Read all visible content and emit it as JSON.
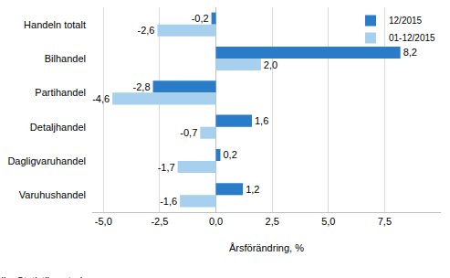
{
  "chart_data": {
    "type": "bar",
    "orientation": "horizontal",
    "categories": [
      "Handeln totalt",
      "Bilhandel",
      "Partihandel",
      "Detaljhandel",
      "Dagligvaruhandel",
      "Varuhushandel"
    ],
    "series": [
      {
        "name": "12/2015",
        "color": "#2a7cc8",
        "values": [
          -0.2,
          8.2,
          -2.8,
          1.6,
          0.2,
          1.2
        ],
        "value_labels": [
          "-0,2",
          "8,2",
          "-2,8",
          "1,6",
          "0,2",
          "1,2"
        ]
      },
      {
        "name": "01-12/2015",
        "color": "#a7d0ef",
        "values": [
          -2.6,
          2.0,
          -4.6,
          -0.7,
          -1.7,
          -1.6
        ],
        "value_labels": [
          "-2,6",
          "2,0",
          "-4,6",
          "-0,7",
          "-1,7",
          "-1,6"
        ]
      }
    ],
    "x_label": "Årsförändring, %",
    "xlim": [
      -5.5,
      10
    ],
    "xticks": [
      {
        "value": -5,
        "label": "-5,0"
      },
      {
        "value": -2.5,
        "label": "-2,5"
      },
      {
        "value": 0,
        "label": "0,0"
      },
      {
        "value": 2.5,
        "label": "2,5"
      },
      {
        "value": 5,
        "label": "5,0"
      },
      {
        "value": 7.5,
        "label": "7,5"
      }
    ],
    "annotations": [
      "Källa: Statistikcentralen"
    ],
    "grid": true,
    "legend": "top right",
    "data_labels": true
  }
}
